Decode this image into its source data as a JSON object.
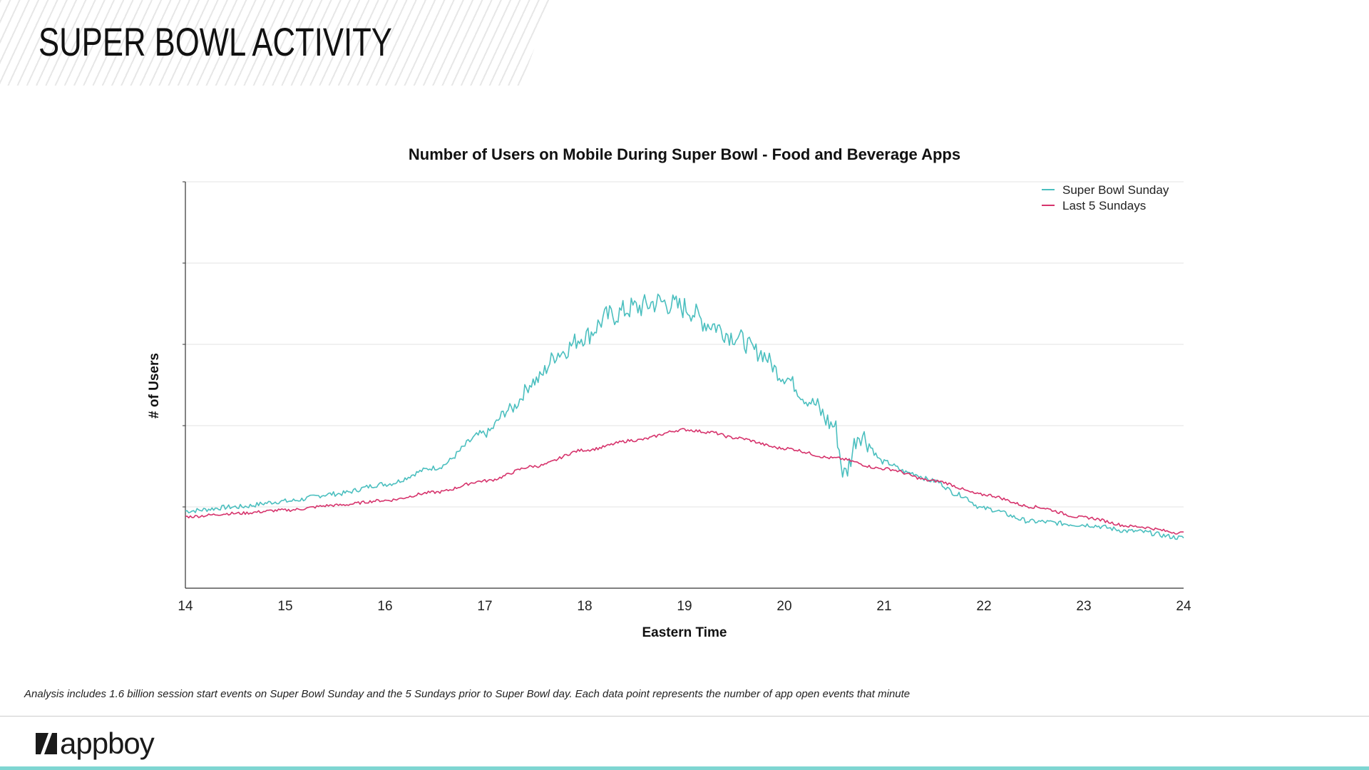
{
  "page": {
    "title": "SUPER BOWL ACTIVITY",
    "footnote": "Analysis includes 1.6 billion session start events on Super Bowl Sunday and the 5 Sundays prior to Super Bowl day.  Each data point represents the number of app open events that minute",
    "brand": "appboy",
    "colors": {
      "accent": "#7ed6d2",
      "series_sb": "#4bbfbf",
      "series_last5": "#d6336c",
      "grid": "#e3e3e3"
    }
  },
  "chart_data": {
    "type": "line",
    "title": "Number of Users on Mobile During Super Bowl - Food and Beverage Apps",
    "xlabel": "Eastern Time",
    "ylabel": "# of Users",
    "xlim": [
      14,
      24
    ],
    "ylim": [
      0,
      5
    ],
    "xticks": [
      "14",
      "15",
      "16",
      "17",
      "18",
      "19",
      "20",
      "21",
      "22",
      "23",
      "24"
    ],
    "yticks_labeled": false,
    "grid": true,
    "legend_position": "top-right",
    "series": [
      {
        "name": "Super Bowl Sunday",
        "color": "#4bbfbf",
        "x": [
          14,
          14.5,
          15,
          15.5,
          16,
          16.5,
          17,
          17.25,
          17.5,
          17.75,
          18,
          18.25,
          18.5,
          18.75,
          19,
          19.25,
          19.5,
          19.75,
          20,
          20.25,
          20.5,
          20.6,
          20.75,
          21,
          21.25,
          21.5,
          21.75,
          22,
          22.5,
          23,
          23.5,
          24
        ],
        "values": [
          0.95,
          1.0,
          1.07,
          1.16,
          1.28,
          1.48,
          1.9,
          2.2,
          2.55,
          2.9,
          3.1,
          3.35,
          3.45,
          3.52,
          3.45,
          3.25,
          3.1,
          2.9,
          2.6,
          2.3,
          2.0,
          1.4,
          1.9,
          1.55,
          1.42,
          1.32,
          1.15,
          0.98,
          0.82,
          0.78,
          0.7,
          0.62
        ]
      },
      {
        "name": "Last 5 Sundays",
        "color": "#d6336c",
        "x": [
          14,
          14.5,
          15,
          15.5,
          16,
          16.5,
          17,
          17.5,
          18,
          18.5,
          19,
          19.25,
          19.5,
          20,
          20.5,
          21,
          21.5,
          22,
          22.5,
          23,
          23.5,
          24
        ],
        "values": [
          0.88,
          0.92,
          0.96,
          1.02,
          1.08,
          1.18,
          1.32,
          1.5,
          1.7,
          1.82,
          1.95,
          1.92,
          1.85,
          1.72,
          1.6,
          1.47,
          1.32,
          1.15,
          1.0,
          0.87,
          0.76,
          0.68
        ]
      }
    ]
  }
}
